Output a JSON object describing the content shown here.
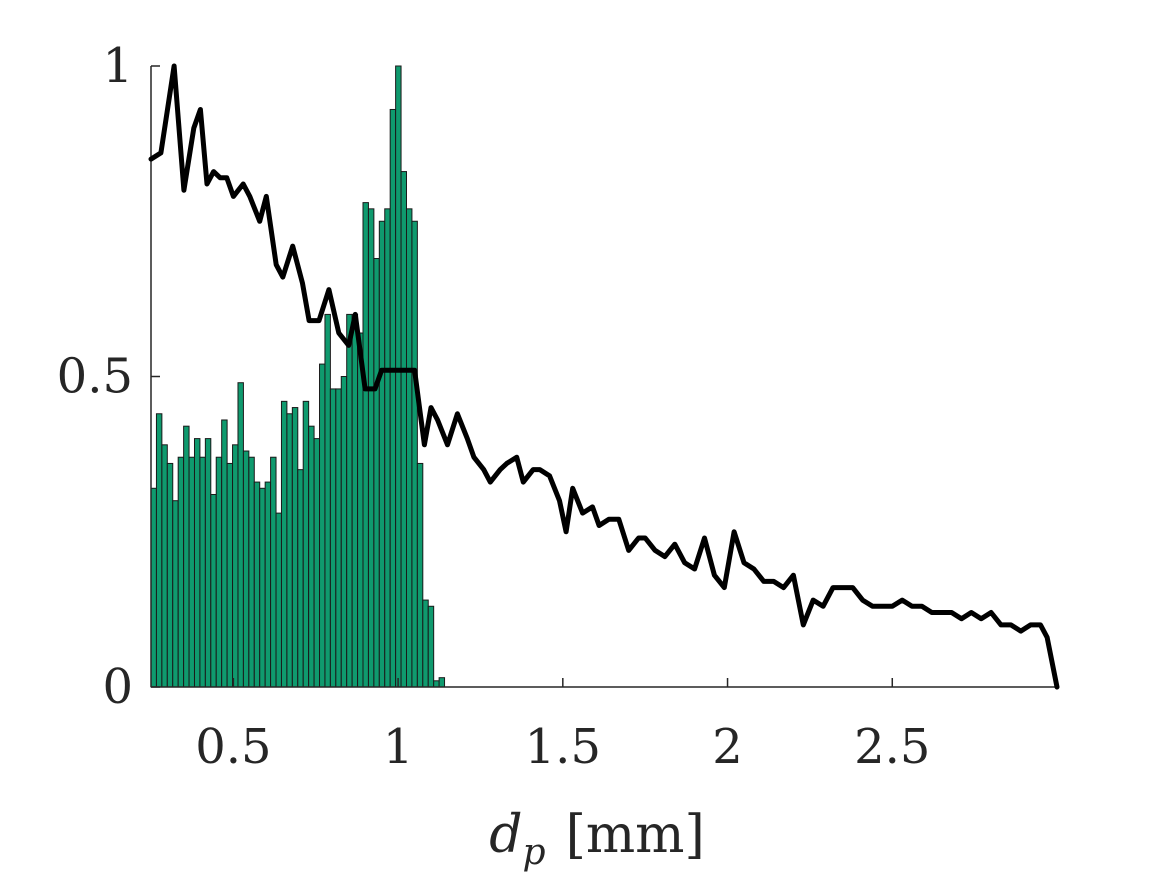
{
  "chart_data": {
    "type": "bar",
    "title": "",
    "xlabel": "d_p [mm]",
    "xlabel_parts": {
      "var": "d",
      "sub": "p",
      "unit": "[mm]"
    },
    "ylabel": "",
    "xlim": [
      0.25,
      3.0
    ],
    "ylim": [
      0,
      1
    ],
    "xticks": [
      0.5,
      1,
      1.5,
      2,
      2.5
    ],
    "xtick_labels": [
      "0.5",
      "1",
      "1.5",
      "2",
      "2.5"
    ],
    "yticks": [
      0,
      0.5,
      1
    ],
    "ytick_labels": [
      "0",
      "0.5",
      "1"
    ],
    "grid": false,
    "colors": {
      "bars": "#0f9a6e",
      "bar_edge": "#1a1a1a",
      "line": "#000000",
      "axis": "#262626"
    },
    "histogram": {
      "bin_start": 0.25,
      "bin_width": 0.0165,
      "values": [
        0.32,
        0.44,
        0.39,
        0.36,
        0.3,
        0.37,
        0.42,
        0.37,
        0.4,
        0.37,
        0.4,
        0.31,
        0.37,
        0.43,
        0.36,
        0.39,
        0.49,
        0.38,
        0.37,
        0.33,
        0.32,
        0.33,
        0.37,
        0.28,
        0.46,
        0.44,
        0.45,
        0.35,
        0.46,
        0.42,
        0.4,
        0.52,
        0.6,
        0.48,
        0.48,
        0.5,
        0.6,
        0.6,
        0.57,
        0.78,
        0.77,
        0.69,
        0.75,
        0.77,
        0.93,
        1.0,
        0.83,
        0.77,
        0.75,
        0.36,
        0.14,
        0.13,
        0.01,
        0.015
      ]
    },
    "series": [
      {
        "type": "line",
        "x": [
          0.25,
          0.28,
          0.32,
          0.35,
          0.38,
          0.4,
          0.42,
          0.44,
          0.46,
          0.48,
          0.5,
          0.53,
          0.55,
          0.58,
          0.6,
          0.63,
          0.65,
          0.68,
          0.71,
          0.73,
          0.76,
          0.79,
          0.82,
          0.85,
          0.87,
          0.9,
          0.93,
          0.95,
          0.98,
          1.0,
          1.03,
          1.05,
          1.08,
          1.1,
          1.12,
          1.15,
          1.18,
          1.21,
          1.23,
          1.26,
          1.28,
          1.31,
          1.33,
          1.36,
          1.38,
          1.41,
          1.43,
          1.46,
          1.49,
          1.51,
          1.53,
          1.56,
          1.59,
          1.61,
          1.64,
          1.67,
          1.7,
          1.73,
          1.75,
          1.78,
          1.81,
          1.84,
          1.87,
          1.9,
          1.93,
          1.96,
          1.99,
          2.02,
          2.05,
          2.08,
          2.11,
          2.14,
          2.17,
          2.2,
          2.23,
          2.26,
          2.29,
          2.32,
          2.35,
          2.38,
          2.41,
          2.44,
          2.47,
          2.5,
          2.53,
          2.56,
          2.59,
          2.62,
          2.65,
          2.68,
          2.71,
          2.74,
          2.77,
          2.8,
          2.83,
          2.86,
          2.89,
          2.92,
          2.95,
          2.97,
          3.0
        ],
        "y": [
          0.85,
          0.86,
          1.0,
          0.8,
          0.9,
          0.93,
          0.81,
          0.83,
          0.82,
          0.82,
          0.79,
          0.81,
          0.79,
          0.75,
          0.79,
          0.68,
          0.66,
          0.71,
          0.65,
          0.59,
          0.59,
          0.64,
          0.57,
          0.55,
          0.6,
          0.48,
          0.48,
          0.51,
          0.51,
          0.51,
          0.51,
          0.51,
          0.39,
          0.45,
          0.43,
          0.39,
          0.44,
          0.4,
          0.37,
          0.35,
          0.33,
          0.35,
          0.36,
          0.37,
          0.33,
          0.35,
          0.35,
          0.34,
          0.3,
          0.25,
          0.32,
          0.28,
          0.29,
          0.26,
          0.27,
          0.27,
          0.22,
          0.24,
          0.24,
          0.22,
          0.21,
          0.23,
          0.2,
          0.19,
          0.24,
          0.18,
          0.16,
          0.25,
          0.2,
          0.19,
          0.17,
          0.17,
          0.16,
          0.18,
          0.1,
          0.14,
          0.13,
          0.16,
          0.16,
          0.16,
          0.14,
          0.13,
          0.13,
          0.13,
          0.14,
          0.13,
          0.13,
          0.12,
          0.12,
          0.12,
          0.11,
          0.12,
          0.11,
          0.12,
          0.1,
          0.1,
          0.09,
          0.1,
          0.1,
          0.08,
          0.0
        ]
      }
    ]
  }
}
